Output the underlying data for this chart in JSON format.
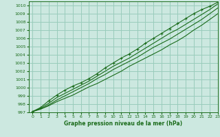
{
  "title": "Graphe pression niveau de la mer (hPa)",
  "xlim": [
    -0.5,
    23
  ],
  "ylim": [
    997,
    1010.5
  ],
  "xticks": [
    0,
    1,
    2,
    3,
    4,
    5,
    6,
    7,
    8,
    9,
    10,
    11,
    12,
    13,
    14,
    15,
    16,
    17,
    18,
    19,
    20,
    21,
    22,
    23
  ],
  "yticks": [
    997,
    998,
    999,
    1000,
    1001,
    1002,
    1003,
    1004,
    1005,
    1006,
    1007,
    1008,
    1009,
    1010
  ],
  "background_color": "#cce8e0",
  "grid_color": "#99ccbb",
  "line_color": "#1a6b1a",
  "marker_color": "#1a6b1a",
  "series": [
    [
      997.1,
      997.4,
      997.8,
      998.3,
      998.7,
      999.1,
      999.6,
      1000.1,
      1000.5,
      1001.0,
      1001.5,
      1002.0,
      1002.6,
      1003.1,
      1003.6,
      1004.1,
      1004.6,
      1005.2,
      1005.7,
      1006.3,
      1007.0,
      1007.6,
      1008.3,
      1009.0
    ],
    [
      997.1,
      997.4,
      997.9,
      998.5,
      999.0,
      999.5,
      1000.0,
      1000.5,
      1001.1,
      1001.6,
      1002.2,
      1002.7,
      1003.2,
      1003.7,
      1004.3,
      1004.9,
      1005.4,
      1005.9,
      1006.5,
      1007.1,
      1007.7,
      1008.3,
      1009.0,
      1009.7
    ],
    [
      997.1,
      997.5,
      998.1,
      998.8,
      999.3,
      999.8,
      1000.3,
      1000.8,
      1001.4,
      1002.0,
      1002.6,
      1003.1,
      1003.6,
      1004.2,
      1004.8,
      1005.4,
      1006.0,
      1006.6,
      1007.1,
      1007.7,
      1008.3,
      1008.9,
      1009.5,
      1010.2
    ],
    [
      997.1,
      997.6,
      998.4,
      999.1,
      999.7,
      1000.2,
      1000.6,
      1001.1,
      1001.7,
      1002.4,
      1003.0,
      1003.6,
      1004.1,
      1004.7,
      1005.4,
      1006.0,
      1006.6,
      1007.2,
      1007.8,
      1008.4,
      1009.0,
      1009.5,
      1009.9,
      1010.4
    ]
  ],
  "marker_series": 3,
  "title_fontsize": 5.5,
  "tick_fontsize": 4.5
}
